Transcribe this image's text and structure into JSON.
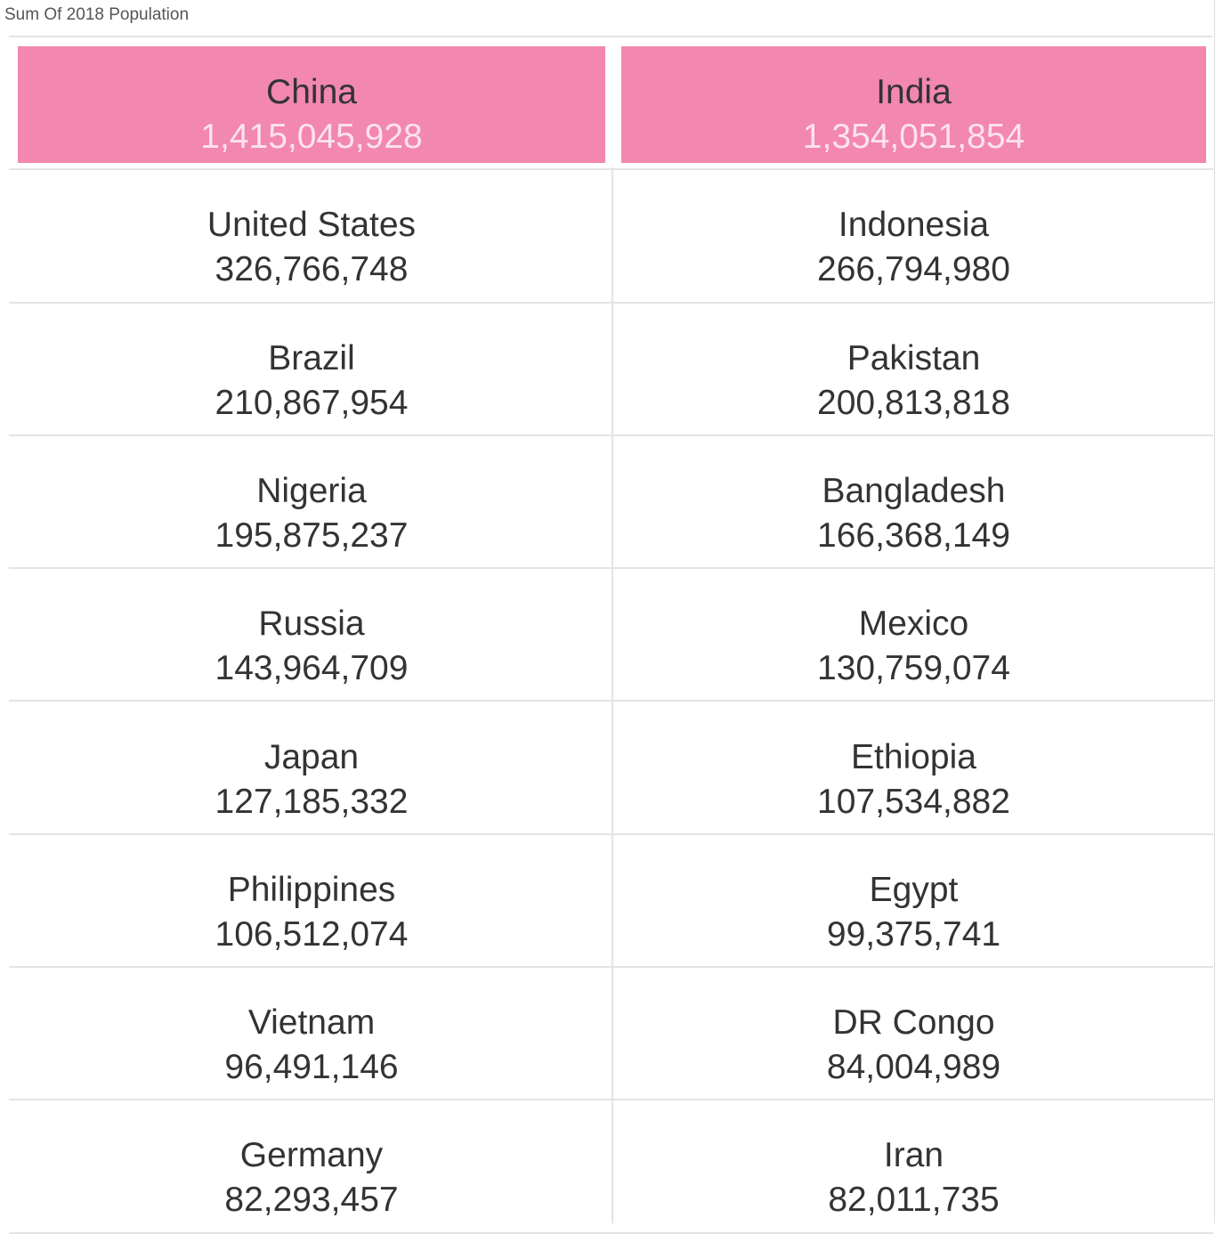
{
  "header": {
    "title": "Sum Of 2018 Population"
  },
  "highlight_color": "#f287b0",
  "cells": [
    {
      "name": "China",
      "value": "1,415,045,928",
      "highlighted": true
    },
    {
      "name": "India",
      "value": "1,354,051,854",
      "highlighted": true
    },
    {
      "name": "United States",
      "value": "326,766,748"
    },
    {
      "name": "Indonesia",
      "value": "266,794,980"
    },
    {
      "name": "Brazil",
      "value": "210,867,954"
    },
    {
      "name": "Pakistan",
      "value": "200,813,818"
    },
    {
      "name": "Nigeria",
      "value": "195,875,237"
    },
    {
      "name": "Bangladesh",
      "value": "166,368,149"
    },
    {
      "name": "Russia",
      "value": "143,964,709"
    },
    {
      "name": "Mexico",
      "value": "130,759,074"
    },
    {
      "name": "Japan",
      "value": "127,185,332"
    },
    {
      "name": "Ethiopia",
      "value": "107,534,882"
    },
    {
      "name": "Philippines",
      "value": "106,512,074"
    },
    {
      "name": "Egypt",
      "value": "99,375,741"
    },
    {
      "name": "Vietnam",
      "value": "96,491,146"
    },
    {
      "name": "DR Congo",
      "value": "84,004,989"
    },
    {
      "name": "Germany",
      "value": "82,293,457"
    },
    {
      "name": "Iran",
      "value": "82,011,735"
    }
  ]
}
